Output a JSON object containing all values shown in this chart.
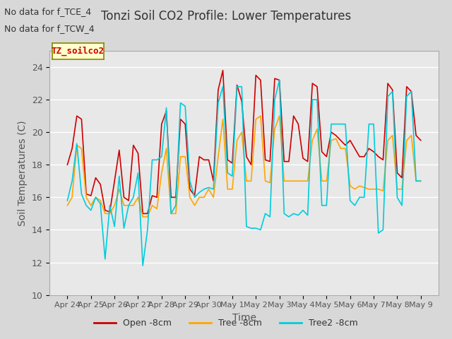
{
  "title": "Tonzi Soil CO2 Profile: Lower Temperatures",
  "ylabel": "Soil Temperatures (C)",
  "xlabel": "Time",
  "top_left_text1": "No data for f_TCE_4",
  "top_left_text2": "No data for f_TCW_4",
  "inset_label": "TZ_soilco2",
  "ylim": [
    10,
    25
  ],
  "yticks": [
    10,
    12,
    14,
    16,
    18,
    20,
    22,
    24
  ],
  "xtick_labels": [
    "Apr 24",
    "Apr 25",
    "Apr 26",
    "Apr 27",
    "Apr 28",
    "Apr 29",
    "Apr 30",
    "May 1",
    "May 2",
    "May 3",
    "May 4",
    "May 5",
    "May 6",
    "May 7",
    "May 8",
    "May 9"
  ],
  "background_color": "#d8d8d8",
  "plot_bg_color": "#e8e8e8",
  "grid_color": "#ffffff",
  "series": [
    {
      "label": "Open -8cm",
      "color": "#cc0000"
    },
    {
      "label": "Tree -8cm",
      "color": "#ffa500"
    },
    {
      "label": "Tree2 -8cm",
      "color": "#00ccdd"
    }
  ],
  "open_data": [
    18.0,
    19.0,
    21.0,
    20.8,
    16.2,
    16.1,
    17.2,
    16.8,
    15.2,
    15.1,
    17.0,
    18.9,
    16.0,
    15.8,
    19.2,
    18.7,
    15.0,
    15.0,
    16.1,
    16.0,
    20.5,
    21.3,
    16.0,
    16.0,
    20.8,
    20.5,
    16.5,
    16.1,
    18.5,
    18.3,
    18.3,
    17.0,
    22.6,
    23.8,
    18.3,
    18.1,
    22.9,
    21.9,
    18.5,
    18.0,
    23.5,
    23.2,
    18.3,
    18.2,
    23.3,
    23.2,
    18.2,
    18.2,
    21.0,
    20.5,
    18.4,
    18.2,
    23.0,
    22.8,
    18.8,
    18.5,
    20.0,
    19.8,
    19.5,
    19.2,
    19.5,
    19.0,
    18.5,
    18.5,
    19.0,
    18.8,
    18.5,
    18.3,
    23.0,
    22.6,
    17.5,
    17.2,
    22.8,
    22.5,
    19.8,
    19.5
  ],
  "tree_data": [
    15.5,
    16.0,
    19.2,
    19.0,
    16.0,
    15.5,
    16.0,
    15.8,
    15.0,
    15.0,
    15.5,
    16.5,
    15.5,
    15.5,
    15.5,
    16.0,
    14.8,
    14.8,
    15.5,
    15.3,
    17.5,
    19.0,
    15.0,
    15.0,
    18.5,
    18.5,
    16.0,
    15.5,
    16.0,
    16.0,
    16.5,
    16.0,
    18.5,
    20.8,
    16.5,
    16.5,
    19.5,
    20.0,
    17.0,
    17.0,
    20.8,
    21.0,
    17.0,
    16.9,
    20.2,
    21.0,
    17.0,
    17.0,
    17.0,
    17.0,
    17.0,
    17.0,
    19.5,
    20.2,
    17.0,
    17.0,
    19.5,
    19.6,
    19.0,
    19.0,
    16.7,
    16.5,
    16.7,
    16.6,
    16.5,
    16.5,
    16.5,
    16.4,
    19.5,
    19.8,
    16.5,
    16.5,
    19.5,
    19.8,
    17.0,
    17.0
  ],
  "tree2_data": [
    15.8,
    17.0,
    19.3,
    16.2,
    15.5,
    15.2,
    16.0,
    15.6,
    12.2,
    15.5,
    14.2,
    17.3,
    14.1,
    15.5,
    16.0,
    17.5,
    11.8,
    14.0,
    18.3,
    18.3,
    18.5,
    21.5,
    15.0,
    15.5,
    21.8,
    21.6,
    17.0,
    16.0,
    16.3,
    16.5,
    16.6,
    16.5,
    21.8,
    22.8,
    17.5,
    17.3,
    22.8,
    22.8,
    14.2,
    14.1,
    14.1,
    14.0,
    15.0,
    14.8,
    22.0,
    23.2,
    15.0,
    14.8,
    15.0,
    14.9,
    15.2,
    14.9,
    22.0,
    22.0,
    15.5,
    15.5,
    20.5,
    20.5,
    20.5,
    20.5,
    15.8,
    15.5,
    16.0,
    16.0,
    20.5,
    20.5,
    13.8,
    14.0,
    22.2,
    22.5,
    16.0,
    15.5,
    22.2,
    22.5,
    17.0,
    17.0
  ]
}
